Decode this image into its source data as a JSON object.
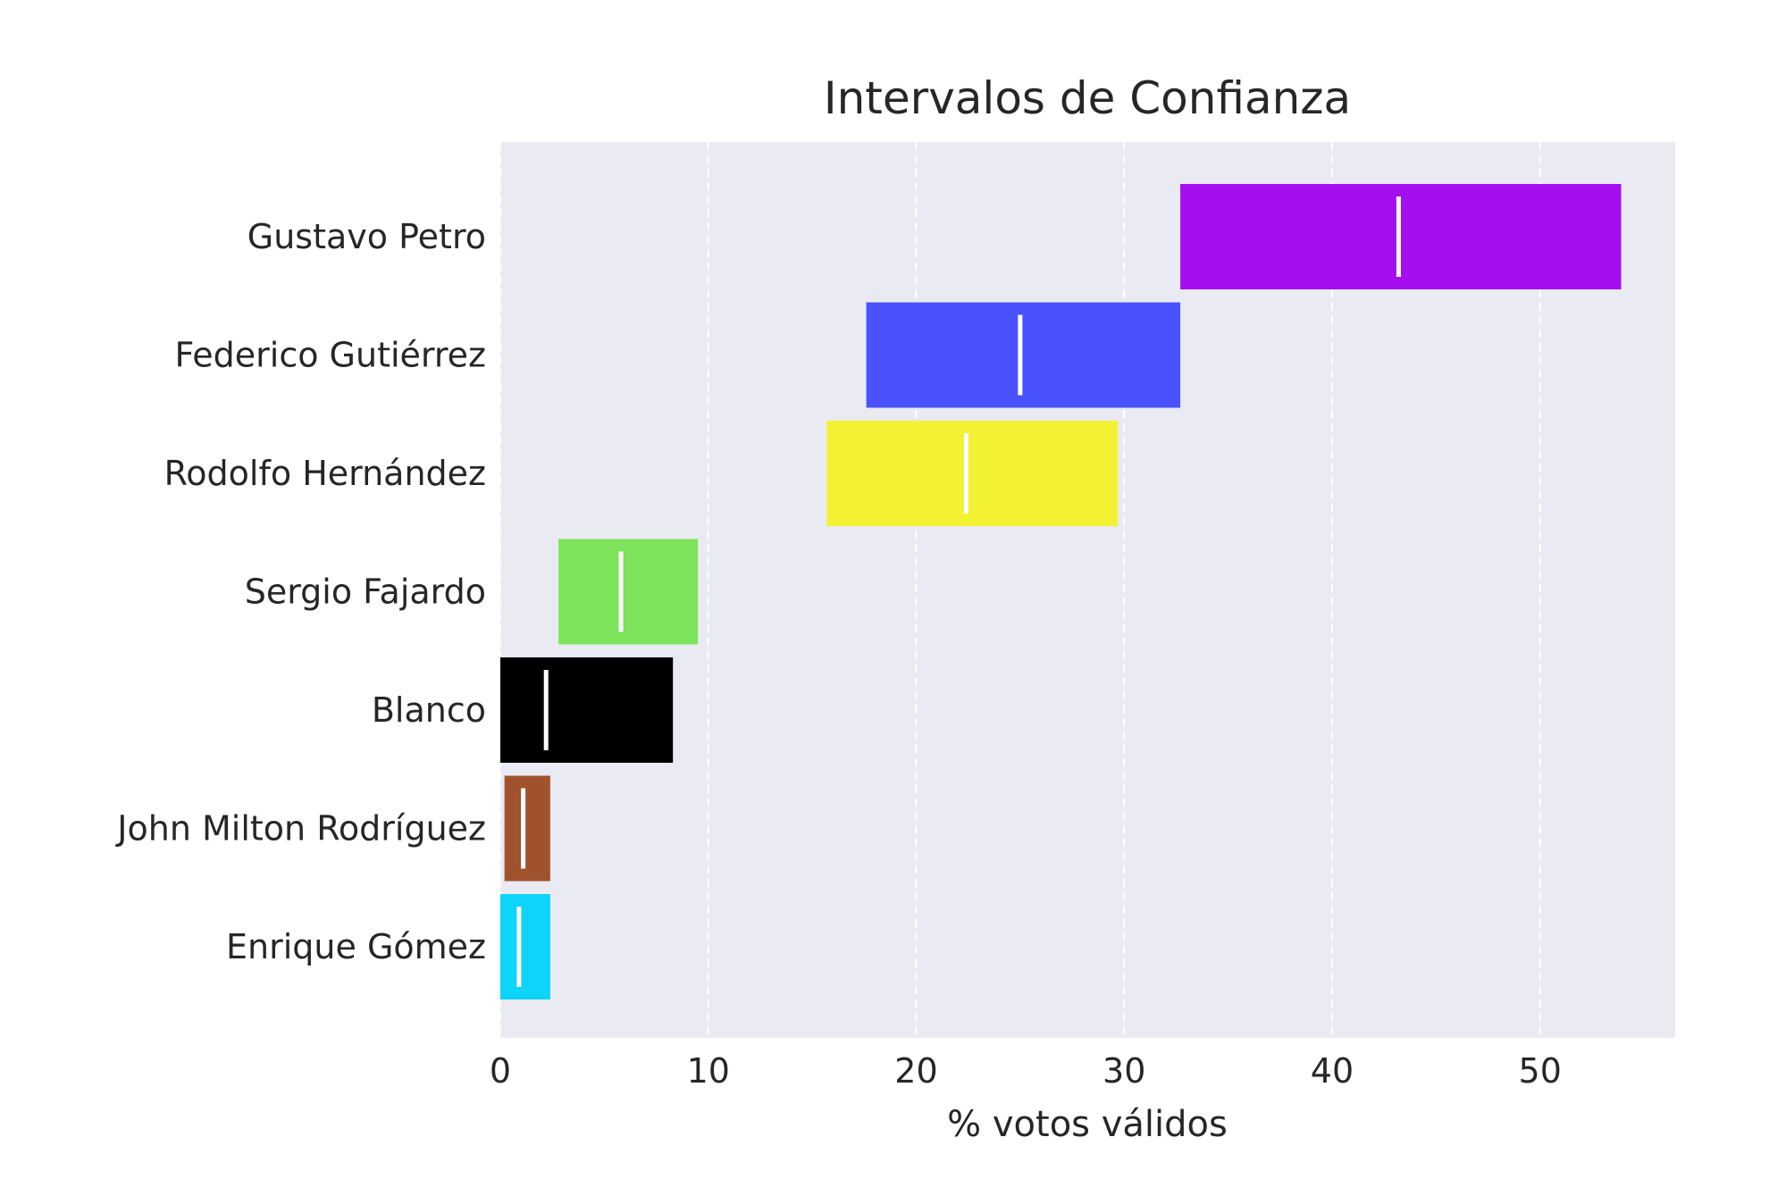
{
  "chart_data": {
    "type": "bar",
    "orientation": "horizontal",
    "title": "Intervalos de Confianza",
    "xlabel": "% votos válidos",
    "ylabel": "",
    "xlim": [
      0,
      56.5
    ],
    "xticks": [
      0,
      10,
      20,
      30,
      40,
      50
    ],
    "grid": "vertical, dashed",
    "background": "#eaeaf2",
    "categories": [
      "Gustavo Petro",
      "Federico Gutiérrez",
      "Rodolfo Hernández",
      "Sergio Fajardo",
      "Blanco",
      "John Milton Rodríguez",
      "Enrique Gómez"
    ],
    "intervals": [
      {
        "low": 32.7,
        "high": 53.9,
        "point": 43.2,
        "color": "#a50ff0"
      },
      {
        "low": 17.6,
        "high": 32.7,
        "point": 25.0,
        "color": "#4a52ff"
      },
      {
        "low": 15.7,
        "high": 29.7,
        "point": 22.4,
        "color": "#f2f232"
      },
      {
        "low": 2.8,
        "high": 9.5,
        "point": 5.8,
        "color": "#7de35a"
      },
      {
        "low": 0.0,
        "high": 8.3,
        "point": 2.2,
        "color": "#000000"
      },
      {
        "low": 0.2,
        "high": 2.4,
        "point": 1.1,
        "color": "#a0522d"
      },
      {
        "low": 0.0,
        "high": 2.4,
        "point": 0.9,
        "color": "#0ed4fa"
      }
    ]
  }
}
